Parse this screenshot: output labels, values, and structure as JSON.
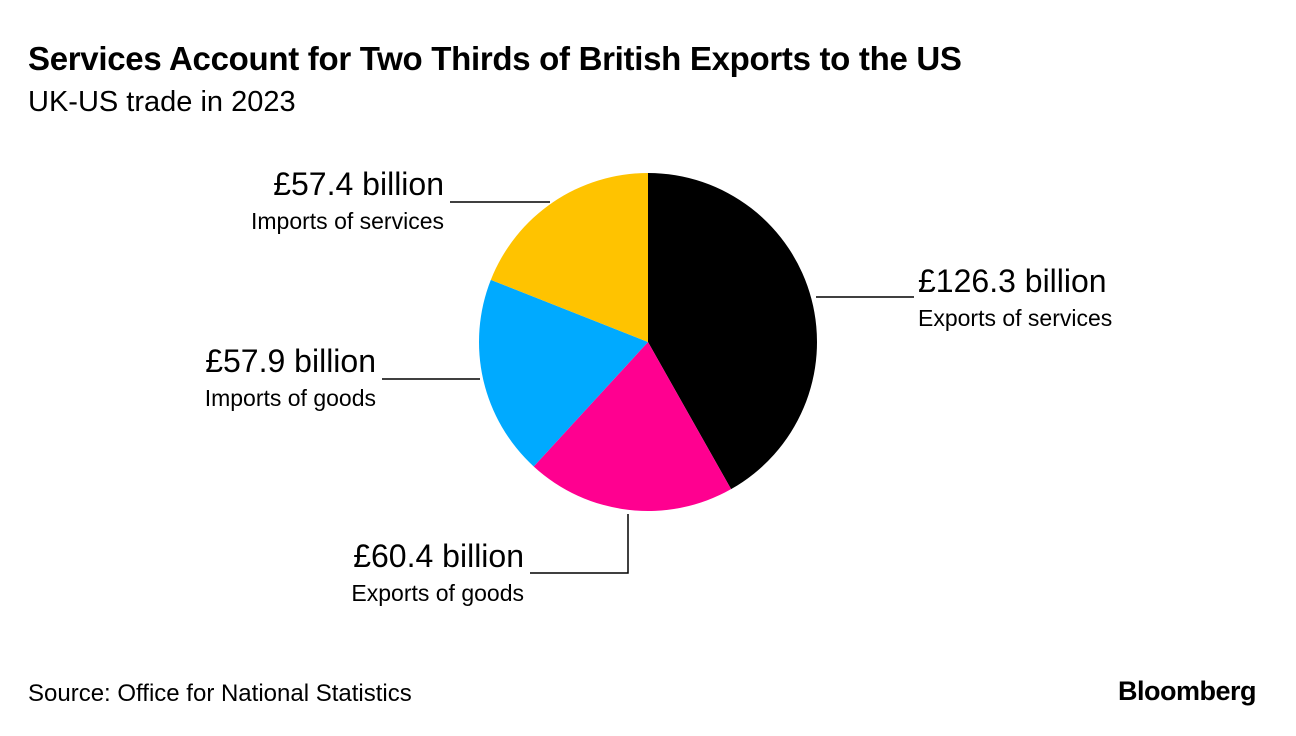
{
  "chart_data": {
    "type": "pie",
    "title": "Services Account for Two Thirds of British Exports to the US",
    "subtitle": "UK-US trade in 2023",
    "unit": "£ billion",
    "slices": [
      {
        "name": "Exports of services",
        "value": 126.3,
        "label": "£126.3 billion",
        "color": "#000000"
      },
      {
        "name": "Exports of goods",
        "value": 60.4,
        "label": "£60.4 billion",
        "color": "#ff0090"
      },
      {
        "name": "Imports of goods",
        "value": 57.9,
        "label": "£57.9 billion",
        "color": "#00aaff"
      },
      {
        "name": "Imports of services",
        "value": 57.4,
        "label": "£57.4 billion",
        "color": "#ffc300"
      }
    ],
    "start_angle": "top",
    "direction": "clockwise",
    "legend": "none"
  },
  "footer": {
    "source": "Source: Office for National Statistics",
    "brand": "Bloomberg"
  }
}
